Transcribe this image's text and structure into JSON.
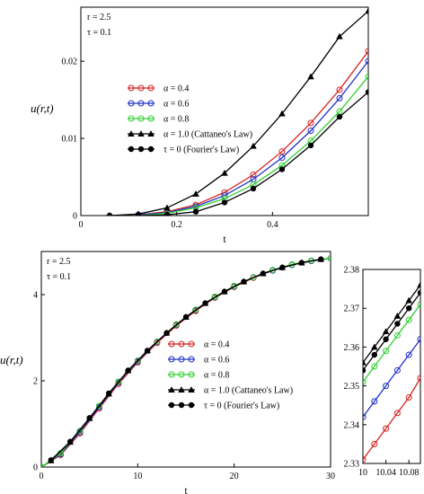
{
  "chart_data": [
    {
      "type": "line",
      "xlabel": "t",
      "ylabel": "u(r,t)",
      "xlim": [
        0,
        0.6
      ],
      "ylim": [
        0,
        0.027
      ],
      "xticks": [
        "0",
        "0.2",
        "0.4"
      ],
      "xtick_values": [
        0,
        0.2,
        0.4
      ],
      "yticks": [
        "0",
        "0.01",
        "0.02"
      ],
      "ytick_values": [
        0,
        0.01,
        0.02
      ],
      "annotations": [
        "r = 2.5",
        "τ = 0.1"
      ],
      "legend_position": "center-left",
      "series": [
        {
          "name": "α = 0.4",
          "color": "#d82020",
          "marker": "open-circle",
          "x": [
            0.12,
            0.18,
            0.24,
            0.3,
            0.36,
            0.42,
            0.48,
            0.54,
            0.6
          ],
          "y": [
            0.0001,
            0.0005,
            0.0014,
            0.003,
            0.0053,
            0.0083,
            0.012,
            0.0163,
            0.0213
          ]
        },
        {
          "name": "α = 0.6",
          "color": "#2030c8",
          "marker": "open-circle",
          "x": [
            0.12,
            0.18,
            0.24,
            0.3,
            0.36,
            0.42,
            0.48,
            0.54,
            0.6
          ],
          "y": [
            0.0001,
            0.0004,
            0.0012,
            0.0026,
            0.0047,
            0.0075,
            0.011,
            0.0152,
            0.02
          ]
        },
        {
          "name": "α = 0.8",
          "color": "#30d030",
          "marker": "open-circle",
          "x": [
            0.12,
            0.18,
            0.24,
            0.3,
            0.36,
            0.42,
            0.48,
            0.54,
            0.6
          ],
          "y": [
            0.0,
            0.0003,
            0.001,
            0.0022,
            0.004,
            0.0065,
            0.0097,
            0.0135,
            0.018
          ]
        },
        {
          "name": "α = 1.0 (Cattaneo's Law)",
          "color": "#000000",
          "marker": "filled-triangle",
          "x": [
            0.06,
            0.12,
            0.18,
            0.24,
            0.3,
            0.36,
            0.42,
            0.48,
            0.54,
            0.6
          ],
          "y": [
            0.0,
            0.0002,
            0.001,
            0.0028,
            0.0055,
            0.009,
            0.0132,
            0.018,
            0.0232,
            0.0265
          ]
        },
        {
          "name": "τ = 0 (Fourier's Law)",
          "color": "#000000",
          "marker": "filled-circle",
          "x": [
            0.06,
            0.12,
            0.18,
            0.24,
            0.3,
            0.36,
            0.42,
            0.48,
            0.54,
            0.6
          ],
          "y": [
            0.0,
            0.0,
            0.0001,
            0.0005,
            0.0017,
            0.0035,
            0.006,
            0.0091,
            0.0128,
            0.016
          ]
        }
      ]
    },
    {
      "type": "line",
      "xlabel": "t",
      "ylabel": "u(r,t)",
      "xlim": [
        0,
        30
      ],
      "ylim": [
        0,
        5.0
      ],
      "xticks": [
        "0",
        "10",
        "20",
        "30"
      ],
      "xtick_values": [
        0,
        10,
        20,
        30
      ],
      "yticks": [
        "0",
        "2",
        "4"
      ],
      "ytick_values": [
        0,
        2,
        4
      ],
      "annotations": [
        "r = 2.5",
        "τ = 0.1"
      ],
      "legend_position": "center-right",
      "series": [
        {
          "name": "α = 0.4",
          "color": "#d82020",
          "marker": "open-circle",
          "x": [
            0,
            2,
            4,
            6,
            8,
            10,
            12,
            14,
            16,
            18,
            20,
            22,
            24,
            26,
            28,
            30
          ],
          "y": [
            0,
            0.28,
            0.78,
            1.36,
            1.93,
            2.43,
            2.88,
            3.28,
            3.62,
            3.93,
            4.18,
            4.39,
            4.56,
            4.69,
            4.78,
            4.84
          ]
        },
        {
          "name": "α = 0.6",
          "color": "#2030c8",
          "marker": "open-circle",
          "x": [
            0,
            2,
            4,
            6,
            8,
            10,
            12,
            14,
            16,
            18,
            20,
            22,
            24,
            26,
            28,
            30
          ],
          "y": [
            0,
            0.3,
            0.81,
            1.39,
            1.96,
            2.45,
            2.9,
            3.3,
            3.64,
            3.94,
            4.19,
            4.4,
            4.56,
            4.69,
            4.78,
            4.84
          ]
        },
        {
          "name": "α = 0.8",
          "color": "#30d030",
          "marker": "open-circle",
          "x": [
            0,
            2,
            4,
            6,
            8,
            10,
            12,
            14,
            16,
            18,
            20,
            22,
            24,
            26,
            28,
            30
          ],
          "y": [
            0,
            0.32,
            0.84,
            1.42,
            1.98,
            2.47,
            2.91,
            3.31,
            3.65,
            3.95,
            4.2,
            4.4,
            4.57,
            4.7,
            4.79,
            4.84
          ]
        },
        {
          "name": "α = 1.0 (Cattaneo's Law)",
          "color": "#000000",
          "marker": "filled-triangle",
          "x": [
            1,
            3,
            5,
            7,
            9,
            11,
            13,
            15,
            17,
            19,
            21,
            23,
            25,
            27,
            29
          ],
          "y": [
            0.15,
            0.58,
            1.13,
            1.7,
            2.24,
            2.7,
            3.11,
            3.48,
            3.8,
            4.07,
            4.3,
            4.49,
            4.63,
            4.74,
            4.82
          ]
        },
        {
          "name": "τ = 0 (Fourier's Law)",
          "color": "#000000",
          "marker": "filled-circle",
          "x": [
            1,
            3,
            5,
            7,
            9,
            11,
            13,
            15,
            17,
            19,
            21,
            23,
            25,
            27,
            29
          ],
          "y": [
            0.16,
            0.59,
            1.14,
            1.71,
            2.24,
            2.7,
            3.11,
            3.48,
            3.8,
            4.07,
            4.3,
            4.49,
            4.63,
            4.74,
            4.82
          ]
        }
      ]
    },
    {
      "type": "line",
      "xlabel": "",
      "ylabel": "",
      "xlim": [
        10,
        10.1
      ],
      "ylim": [
        2.33,
        2.38
      ],
      "xticks": [
        "10",
        "10.04",
        "10.08"
      ],
      "xtick_values": [
        10,
        10.04,
        10.08
      ],
      "yticks": [
        "2.33",
        "2.34",
        "2.35",
        "2.36",
        "2.37",
        "2.38"
      ],
      "ytick_values": [
        2.33,
        2.34,
        2.35,
        2.36,
        2.37,
        2.38
      ],
      "series": [
        {
          "name": "α = 0.4",
          "color": "#d82020",
          "marker": "open-circle",
          "x": [
            10,
            10.02,
            10.04,
            10.06,
            10.08,
            10.1
          ],
          "y": [
            2.331,
            2.335,
            2.339,
            2.343,
            2.347,
            2.352
          ]
        },
        {
          "name": "α = 0.6",
          "color": "#2030c8",
          "marker": "open-circle",
          "x": [
            10,
            10.02,
            10.04,
            10.06,
            10.08,
            10.1
          ],
          "y": [
            2.342,
            2.346,
            2.35,
            2.354,
            2.358,
            2.362
          ]
        },
        {
          "name": "α = 0.8",
          "color": "#30d030",
          "marker": "open-circle",
          "x": [
            10,
            10.02,
            10.04,
            10.06,
            10.08,
            10.1
          ],
          "y": [
            2.351,
            2.355,
            2.359,
            2.363,
            2.367,
            2.371
          ]
        },
        {
          "name": "α = 1.0 (Cattaneo's Law)",
          "color": "#000000",
          "marker": "filled-triangle",
          "x": [
            10,
            10.02,
            10.04,
            10.06,
            10.08,
            10.1
          ],
          "y": [
            2.356,
            2.36,
            2.364,
            2.368,
            2.372,
            2.376
          ]
        },
        {
          "name": "τ = 0 (Fourier's Law)",
          "color": "#000000",
          "marker": "filled-circle",
          "x": [
            10,
            10.02,
            10.04,
            10.06,
            10.08,
            10.1
          ],
          "y": [
            2.354,
            2.358,
            2.362,
            2.366,
            2.37,
            2.374
          ]
        }
      ]
    }
  ]
}
